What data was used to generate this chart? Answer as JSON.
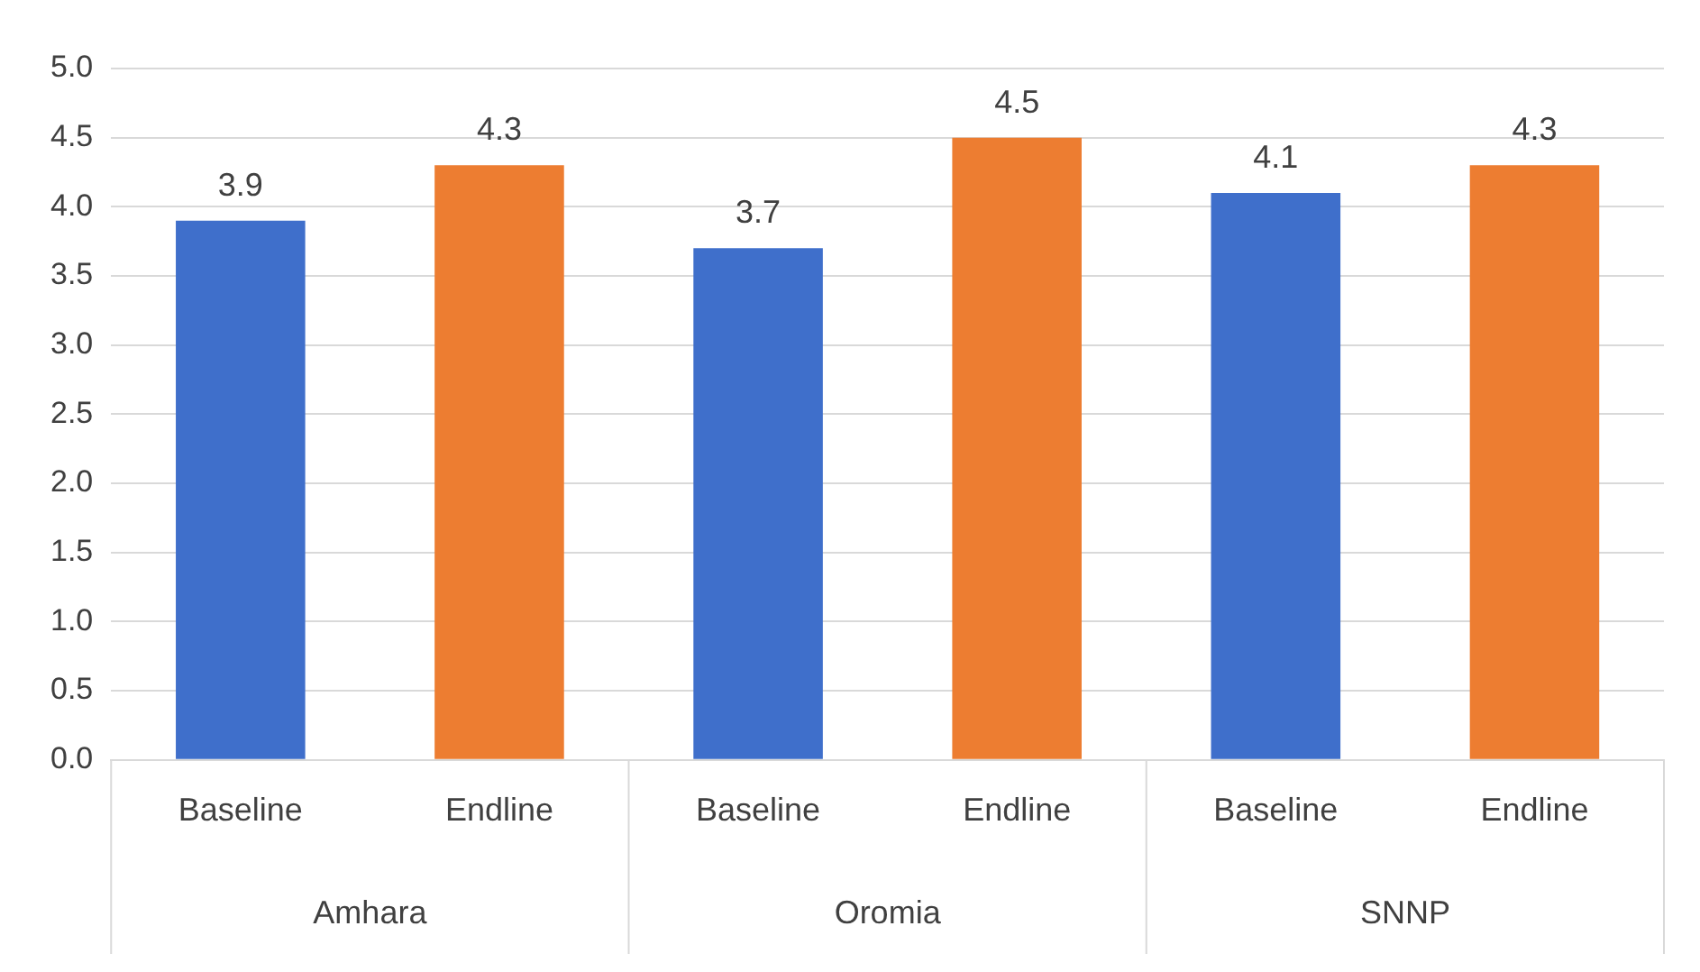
{
  "chart_data": {
    "type": "bar",
    "categories": [
      "Baseline",
      "Endline",
      "Baseline",
      "Endline",
      "Baseline",
      "Endline"
    ],
    "values": [
      3.9,
      4.3,
      3.7,
      4.5,
      4.1,
      4.3
    ],
    "colors": [
      "#3f6fcb",
      "#ed7d31",
      "#3f6fcb",
      "#ed7d31",
      "#3f6fcb",
      "#ed7d31"
    ],
    "annotations": [
      "Amhara",
      "Oromia",
      "SNNP"
    ],
    "ylim": [
      0,
      5
    ],
    "yticks": [
      {
        "value": 0,
        "label": "0.0"
      },
      {
        "value": 0.5,
        "label": "0.5"
      },
      {
        "value": 1,
        "label": "1.0"
      },
      {
        "value": 1.5,
        "label": "1.5"
      },
      {
        "value": 2,
        "label": "2.0"
      },
      {
        "value": 2.5,
        "label": "2.5"
      },
      {
        "value": 3,
        "label": "3.0"
      },
      {
        "value": 3.5,
        "label": "3.5"
      },
      {
        "value": 4,
        "label": "4.0"
      },
      {
        "value": 4.5,
        "label": "4.5"
      },
      {
        "value": 5,
        "label": "5.0"
      }
    ],
    "data_labels": true,
    "grid": "y",
    "legend": false
  }
}
